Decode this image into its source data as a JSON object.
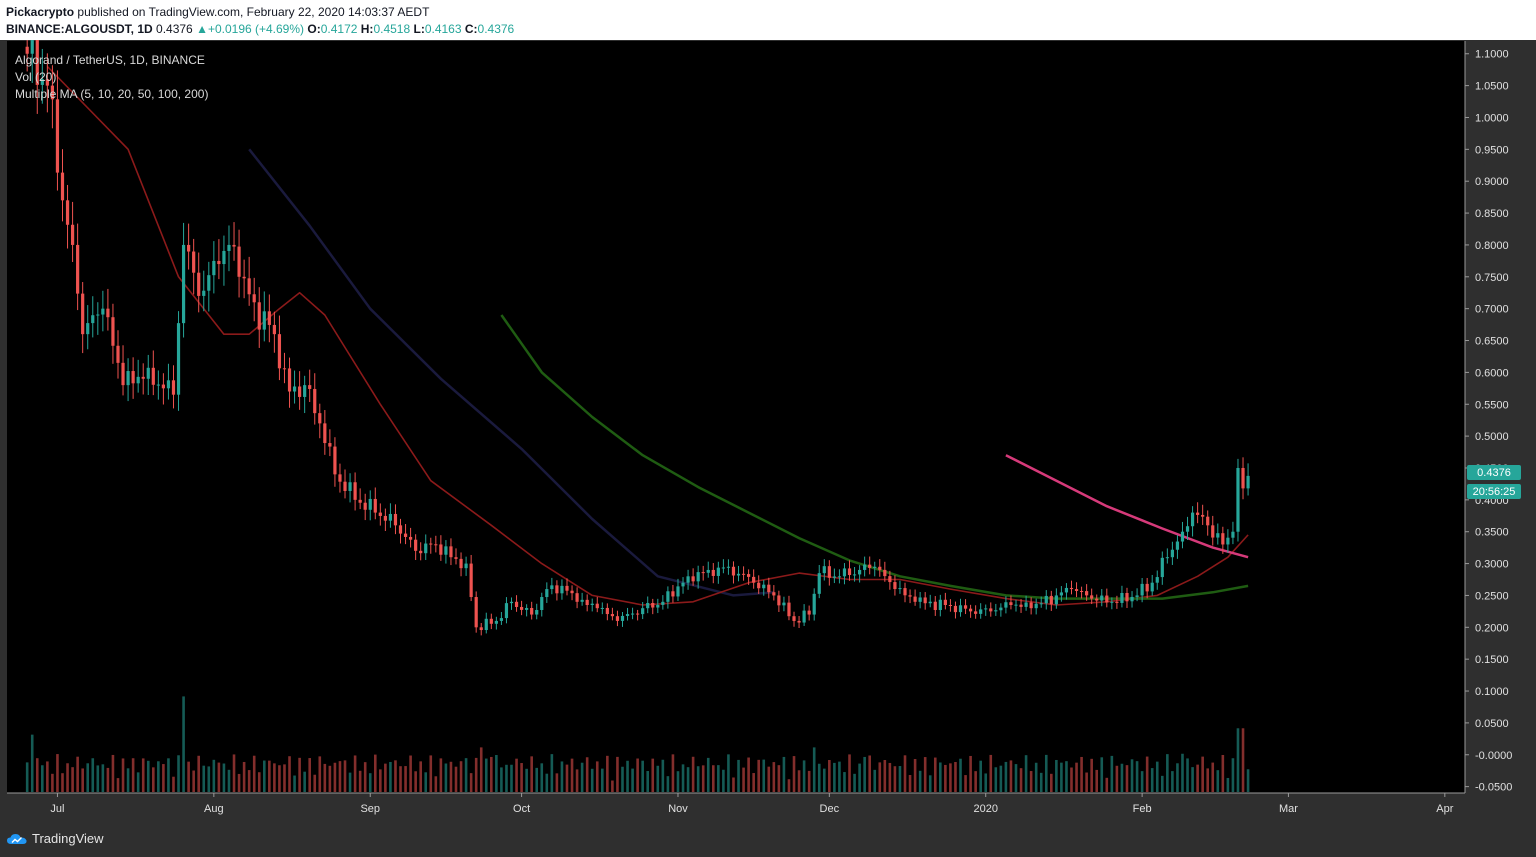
{
  "header": {
    "author": "Pickacrypto",
    "published": "published on TradingView.com, February 22, 2020 14:03:37 AEDT",
    "symbol": "BINANCE:ALGOUSDT, 1D",
    "last": "0.4376",
    "change": "+0.0196 (+4.69%)",
    "o_label": "O:",
    "o": "0.4172",
    "h_label": "H:",
    "h": "0.4518",
    "l_label": "L:",
    "l": "0.4163",
    "c_label": "C:",
    "c": "0.4376"
  },
  "legend": {
    "title": "Algorand / TetherUS, 1D, BINANCE",
    "volume": "Vol (20)",
    "ma": "Multiple MA (5, 10, 20, 50, 100, 200)"
  },
  "footer": {
    "brand": "TradingView"
  },
  "colors": {
    "background": "#000000",
    "up": "#26a69a",
    "down": "#ef5350",
    "ma20": "#8b1a1a",
    "ma50": "#1a1a3d",
    "ma100": "#1f5c12",
    "ma200": "#d63a7a",
    "price_label_bg": "#26a69a"
  },
  "chart_data": {
    "type": "candlestick",
    "title": "Algorand / TetherUS, 1D, BINANCE",
    "x_ticks": [
      "Jul",
      "Aug",
      "Sep",
      "Oct",
      "Nov",
      "Dec",
      "2020",
      "Feb",
      "Mar",
      "Apr"
    ],
    "y_ticks": [
      "1.1000",
      "1.0500",
      "1.0000",
      "0.9500",
      "0.9000",
      "0.8500",
      "0.8000",
      "0.7500",
      "0.7000",
      "0.6500",
      "0.6000",
      "0.5500",
      "0.5000",
      "0.4500",
      "0.4000",
      "0.3500",
      "0.3000",
      "0.2500",
      "0.2000",
      "0.1500",
      "0.1000",
      "0.0500",
      "-0.0000",
      "-0.0500"
    ],
    "ylim": [
      -0.06,
      1.12
    ],
    "x_range": [
      "2019-06-21",
      "2020-04-05"
    ],
    "last_price": "0.4376",
    "countdown": "20:56:25",
    "close_path": [
      [
        "2019-06-25",
        1.1
      ],
      [
        "2019-06-29",
        1.05
      ],
      [
        "2019-07-02",
        0.87
      ],
      [
        "2019-07-04",
        0.8
      ],
      [
        "2019-07-06",
        0.66
      ],
      [
        "2019-07-10",
        0.7
      ],
      [
        "2019-07-14",
        0.58
      ],
      [
        "2019-07-18",
        0.59
      ],
      [
        "2019-07-22",
        0.575
      ],
      [
        "2019-07-24",
        0.565
      ],
      [
        "2019-07-26",
        0.8
      ],
      [
        "2019-07-29",
        0.72
      ],
      [
        "2019-08-02",
        0.77
      ],
      [
        "2019-08-04",
        0.8
      ],
      [
        "2019-08-06",
        0.75
      ],
      [
        "2019-08-09",
        0.71
      ],
      [
        "2019-08-13",
        0.66
      ],
      [
        "2019-08-16",
        0.57
      ],
      [
        "2019-08-19",
        0.58
      ],
      [
        "2019-08-22",
        0.52
      ],
      [
        "2019-08-25",
        0.44
      ],
      [
        "2019-08-29",
        0.4
      ],
      [
        "2019-09-02",
        0.38
      ],
      [
        "2019-09-06",
        0.36
      ],
      [
        "2019-09-10",
        0.32
      ],
      [
        "2019-09-14",
        0.33
      ],
      [
        "2019-09-17",
        0.31
      ],
      [
        "2019-09-20",
        0.3
      ],
      [
        "2019-09-22",
        0.2
      ],
      [
        "2019-09-26",
        0.21
      ],
      [
        "2019-09-29",
        0.24
      ],
      [
        "2019-10-03",
        0.22
      ],
      [
        "2019-10-06",
        0.26
      ],
      [
        "2019-10-09",
        0.265
      ],
      [
        "2019-10-12",
        0.24
      ],
      [
        "2019-10-16",
        0.23
      ],
      [
        "2019-10-20",
        0.21
      ],
      [
        "2019-10-25",
        0.23
      ],
      [
        "2019-10-29",
        0.24
      ],
      [
        "2019-11-03",
        0.28
      ],
      [
        "2019-11-07",
        0.29
      ],
      [
        "2019-11-11",
        0.295
      ],
      [
        "2019-11-16",
        0.27
      ],
      [
        "2019-11-20",
        0.25
      ],
      [
        "2019-11-24",
        0.21
      ],
      [
        "2019-11-27",
        0.22
      ],
      [
        "2019-11-29",
        0.285
      ],
      [
        "2019-12-03",
        0.28
      ],
      [
        "2019-12-07",
        0.29
      ],
      [
        "2019-12-10",
        0.295
      ],
      [
        "2019-12-14",
        0.26
      ],
      [
        "2019-12-18",
        0.24
      ],
      [
        "2019-12-24",
        0.235
      ],
      [
        "2019-12-29",
        0.225
      ],
      [
        "2020-01-02",
        0.225
      ],
      [
        "2020-01-06",
        0.235
      ],
      [
        "2020-01-10",
        0.23
      ],
      [
        "2020-01-15",
        0.25
      ],
      [
        "2020-01-18",
        0.26
      ],
      [
        "2020-01-22",
        0.245
      ],
      [
        "2020-01-26",
        0.24
      ],
      [
        "2020-01-31",
        0.25
      ],
      [
        "2020-02-03",
        0.27
      ],
      [
        "2020-02-06",
        0.31
      ],
      [
        "2020-02-09",
        0.35
      ],
      [
        "2020-02-11",
        0.38
      ],
      [
        "2020-02-14",
        0.36
      ],
      [
        "2020-02-17",
        0.33
      ],
      [
        "2020-02-19",
        0.35
      ],
      [
        "2020-02-20",
        0.45
      ],
      [
        "2020-02-21",
        0.418
      ],
      [
        "2020-02-22",
        0.4376
      ]
    ],
    "ma20": [
      [
        "2019-06-29",
        1.08
      ],
      [
        "2019-07-15",
        0.95
      ],
      [
        "2019-07-25",
        0.75
      ],
      [
        "2019-08-03",
        0.66
      ],
      [
        "2019-08-08",
        0.66
      ],
      [
        "2019-08-14",
        0.7
      ],
      [
        "2019-08-18",
        0.725
      ],
      [
        "2019-08-23",
        0.69
      ],
      [
        "2019-09-03",
        0.55
      ],
      [
        "2019-09-13",
        0.43
      ],
      [
        "2019-09-25",
        0.36
      ],
      [
        "2019-10-05",
        0.3
      ],
      [
        "2019-10-15",
        0.25
      ],
      [
        "2019-10-25",
        0.235
      ],
      [
        "2019-11-04",
        0.24
      ],
      [
        "2019-11-15",
        0.27
      ],
      [
        "2019-11-25",
        0.285
      ],
      [
        "2019-12-05",
        0.275
      ],
      [
        "2019-12-15",
        0.275
      ],
      [
        "2019-12-25",
        0.26
      ],
      [
        "2020-01-05",
        0.245
      ],
      [
        "2020-01-15",
        0.235
      ],
      [
        "2020-01-25",
        0.24
      ],
      [
        "2020-02-04",
        0.25
      ],
      [
        "2020-02-12",
        0.28
      ],
      [
        "2020-02-18",
        0.31
      ],
      [
        "2020-02-22",
        0.345
      ]
    ],
    "ma50": [
      [
        "2019-08-08",
        0.95
      ],
      [
        "2019-08-20",
        0.83
      ],
      [
        "2019-09-01",
        0.7
      ],
      [
        "2019-09-15",
        0.59
      ],
      [
        "2019-10-01",
        0.48
      ],
      [
        "2019-10-15",
        0.37
      ],
      [
        "2019-10-28",
        0.28
      ],
      [
        "2019-11-12",
        0.25
      ],
      [
        "2019-11-20",
        0.255
      ]
    ],
    "ma100": [
      [
        "2019-09-27",
        0.69
      ],
      [
        "2019-10-05",
        0.6
      ],
      [
        "2019-10-15",
        0.53
      ],
      [
        "2019-10-25",
        0.47
      ],
      [
        "2019-11-05",
        0.42
      ],
      [
        "2019-11-15",
        0.38
      ],
      [
        "2019-11-25",
        0.34
      ],
      [
        "2019-12-05",
        0.305
      ],
      [
        "2019-12-15",
        0.28
      ],
      [
        "2019-12-25",
        0.265
      ],
      [
        "2020-01-05",
        0.25
      ],
      [
        "2020-01-15",
        0.245
      ],
      [
        "2020-01-25",
        0.245
      ],
      [
        "2020-02-05",
        0.245
      ],
      [
        "2020-02-15",
        0.255
      ],
      [
        "2020-02-22",
        0.265
      ]
    ],
    "ma200": [
      [
        "2020-01-05",
        0.47
      ],
      [
        "2020-01-15",
        0.43
      ],
      [
        "2020-01-25",
        0.39
      ],
      [
        "2020-02-05",
        0.355
      ],
      [
        "2020-02-15",
        0.325
      ],
      [
        "2020-02-22",
        0.31
      ]
    ],
    "volume_spikes": [
      [
        "2019-06-26",
        0.09
      ],
      [
        "2019-07-26",
        0.15
      ],
      [
        "2019-09-23",
        0.07
      ],
      [
        "2019-09-25",
        0.055
      ],
      [
        "2019-11-28",
        0.07
      ],
      [
        "2019-12-08",
        0.055
      ],
      [
        "2020-02-09",
        0.06
      ],
      [
        "2020-02-20",
        0.1
      ],
      [
        "2020-02-21",
        0.1
      ]
    ]
  }
}
